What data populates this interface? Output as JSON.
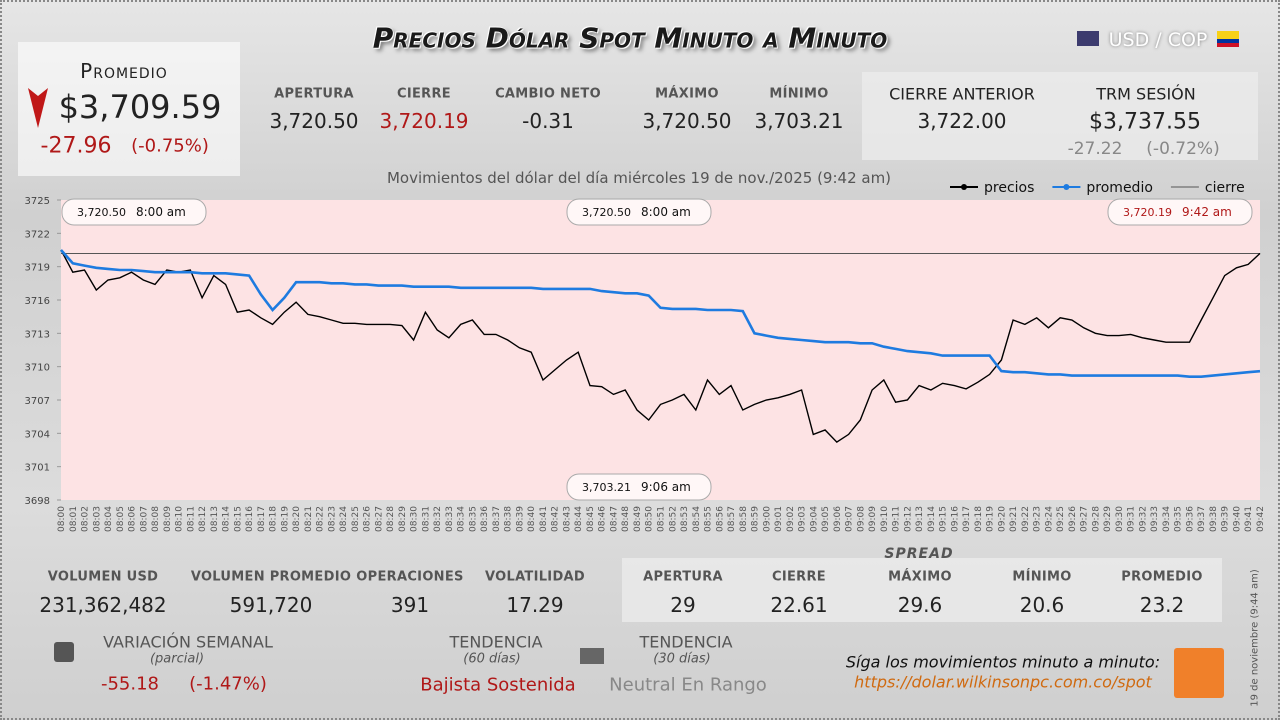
{
  "header": {
    "title": "Precios Dólar Spot Minuto a Minuto",
    "currency_pair": "USD / COP"
  },
  "summary": {
    "promedio_label": "Promedio",
    "promedio": "$3,709.59",
    "change": "-27.96",
    "change_pct": "(-0.75%)",
    "stats": [
      {
        "label": "APERTURA",
        "value": "3,720.50"
      },
      {
        "label": "CIERRE",
        "value": "3,720.19"
      },
      {
        "label": "CAMBIO NETO",
        "value": "-0.31"
      },
      {
        "label": "MÁXIMO",
        "value": "3,720.50"
      },
      {
        "label": "MÍNIMO",
        "value": "3,703.21"
      }
    ],
    "cierre_anterior": {
      "label": "CIERRE ANTERIOR",
      "value": "3,722.00"
    },
    "trm": {
      "label": "TRM SESIÓN",
      "value": "$3,737.55",
      "change": "-27.22",
      "change_pct": "(-0.72%)"
    }
  },
  "chart_data": {
    "type": "line",
    "title": "Movimientos del dólar del día miércoles 19 de nov./2025 (9:42 am)",
    "categories": [
      "08:00",
      "08:01",
      "08:02",
      "08:03",
      "08:04",
      "08:05",
      "08:06",
      "08:07",
      "08:08",
      "08:09",
      "08:10",
      "08:11",
      "08:12",
      "08:13",
      "08:14",
      "08:15",
      "08:16",
      "08:17",
      "08:18",
      "08:19",
      "08:20",
      "08:21",
      "08:22",
      "08:23",
      "08:24",
      "08:25",
      "08:26",
      "08:27",
      "08:28",
      "08:29",
      "08:30",
      "08:31",
      "08:32",
      "08:33",
      "08:34",
      "08:35",
      "08:36",
      "08:37",
      "08:38",
      "08:39",
      "08:40",
      "08:41",
      "08:42",
      "08:43",
      "08:44",
      "08:45",
      "08:46",
      "08:47",
      "08:48",
      "08:49",
      "08:50",
      "08:51",
      "08:52",
      "08:53",
      "08:54",
      "08:55",
      "08:56",
      "08:57",
      "08:58",
      "08:59",
      "09:00",
      "09:01",
      "09:02",
      "09:03",
      "09:04",
      "09:05",
      "09:06",
      "09:07",
      "09:08",
      "09:09",
      "09:10",
      "09:11",
      "09:12",
      "09:13",
      "09:14",
      "09:15",
      "09:16",
      "09:17",
      "09:18",
      "09:19",
      "09:20",
      "09:21",
      "09:22",
      "09:23",
      "09:24",
      "09:25",
      "09:26",
      "09:27",
      "09:28",
      "09:29",
      "09:30",
      "09:31",
      "09:32",
      "09:33",
      "09:34",
      "09:35",
      "09:36",
      "09:37",
      "09:38",
      "09:39",
      "09:40",
      "09:41",
      "09:42"
    ],
    "series": [
      {
        "name": "precios",
        "color": "#000000",
        "values": [
          3720.5,
          3718.5,
          3718.7,
          3716.9,
          3717.8,
          3718,
          3718.5,
          3717.8,
          3717.4,
          3718.7,
          3718.5,
          3718.7,
          3716.2,
          3718.2,
          3717.4,
          3714.9,
          3715.1,
          3714.4,
          3713.8,
          3714.9,
          3715.8,
          3714.7,
          3714.5,
          3714.2,
          3713.9,
          3713.9,
          3713.8,
          3713.8,
          3713.8,
          3713.7,
          3712.4,
          3714.9,
          3713.3,
          3712.6,
          3713.8,
          3714.2,
          3712.9,
          3712.9,
          3712.4,
          3711.7,
          3711.3,
          3708.8,
          3709.7,
          3710.6,
          3711.3,
          3708.3,
          3708.2,
          3707.5,
          3707.9,
          3706.1,
          3705.2,
          3706.6,
          3707,
          3707.5,
          3706.1,
          3708.8,
          3707.5,
          3708.3,
          3706.1,
          3706.6,
          3707,
          3707.2,
          3707.5,
          3707.9,
          3703.9,
          3704.3,
          3703.21,
          3703.9,
          3705.2,
          3707.9,
          3708.8,
          3706.8,
          3707,
          3708.3,
          3707.9,
          3708.5,
          3708.3,
          3708,
          3708.6,
          3709.3,
          3710.6,
          3714.2,
          3713.8,
          3714.4,
          3713.5,
          3714.4,
          3714.2,
          3713.5,
          3713,
          3712.8,
          3712.8,
          3712.9,
          3712.6,
          3712.4,
          3712.2,
          3712.2,
          3712.2,
          3714.2,
          3716.2,
          3718.2,
          3718.9,
          3719.2,
          3720.19
        ]
      },
      {
        "name": "promedio",
        "color": "#1e7be0",
        "values": [
          3720.5,
          3719.3,
          3719.1,
          3718.9,
          3718.8,
          3718.7,
          3718.7,
          3718.6,
          3718.5,
          3718.5,
          3718.5,
          3718.5,
          3718.4,
          3718.4,
          3718.4,
          3718.3,
          3718.2,
          3716.5,
          3715.1,
          3716.2,
          3717.6,
          3717.6,
          3717.6,
          3717.5,
          3717.5,
          3717.4,
          3717.4,
          3717.3,
          3717.3,
          3717.3,
          3717.2,
          3717.2,
          3717.2,
          3717.2,
          3717.1,
          3717.1,
          3717.1,
          3717.1,
          3717.1,
          3717.1,
          3717.1,
          3717,
          3717,
          3717,
          3717,
          3717,
          3716.8,
          3716.7,
          3716.6,
          3716.6,
          3716.4,
          3715.3,
          3715.2,
          3715.2,
          3715.2,
          3715.1,
          3715.1,
          3715.1,
          3715,
          3713,
          3712.8,
          3712.6,
          3712.5,
          3712.4,
          3712.3,
          3712.2,
          3712.2,
          3712.2,
          3712.1,
          3712.1,
          3711.8,
          3711.6,
          3711.4,
          3711.3,
          3711.2,
          3711,
          3711,
          3711,
          3711,
          3711,
          3709.6,
          3709.5,
          3709.5,
          3709.4,
          3709.3,
          3709.3,
          3709.2,
          3709.2,
          3709.2,
          3709.2,
          3709.2,
          3709.2,
          3709.2,
          3709.2,
          3709.2,
          3709.2,
          3709.1,
          3709.1,
          3709.2,
          3709.3,
          3709.4,
          3709.5,
          3709.59
        ]
      }
    ],
    "reference_line": {
      "name": "cierre",
      "value": 3720.19,
      "color": "#555555"
    },
    "ylim": [
      3698,
      3725
    ],
    "yticks": [
      3698,
      3701,
      3704,
      3707,
      3710,
      3713,
      3716,
      3719,
      3722,
      3725
    ],
    "grid": false,
    "legend": "top-right",
    "annotations": [
      {
        "value": "3,720.50",
        "time": "8:00 am"
      },
      {
        "value": "3,720.50",
        "time": "8:00 am"
      },
      {
        "value": "3,720.19",
        "time": "9:42 am"
      },
      {
        "value": "3,703.21",
        "time": "9:06 am"
      }
    ]
  },
  "bottom_stats": [
    {
      "label": "VOLUMEN USD",
      "value": "231,362,482"
    },
    {
      "label": "VOLUMEN PROMEDIO",
      "value": "591,720"
    },
    {
      "label": "OPERACIONES",
      "value": "391"
    },
    {
      "label": "VOLATILIDAD",
      "value": "17.29"
    }
  ],
  "spread": {
    "title": "SPREAD",
    "items": [
      {
        "label": "APERTURA",
        "value": "29"
      },
      {
        "label": "CIERRE",
        "value": "22.61"
      },
      {
        "label": "MÁXIMO",
        "value": "29.6"
      },
      {
        "label": "MÍNIMO",
        "value": "20.6"
      },
      {
        "label": "PROMEDIO",
        "value": "23.2"
      }
    ]
  },
  "weekly": {
    "label": "VARIACIÓN SEMANAL",
    "note": "(parcial)",
    "change": "-55.18",
    "change_pct": "(-1.47%)"
  },
  "trends": [
    {
      "label": "TENDENCIA",
      "note": "(60 días)",
      "value": "Bajista Sostenida"
    },
    {
      "label": "TENDENCIA",
      "note": "(30 días)",
      "value": "Neutral En Rango"
    }
  ],
  "footer": {
    "text": "Síga los movimientos minuto a minuto:",
    "url": "https://dolar.wilkinsonpc.com.co/spot",
    "timestamp": "19 de noviembre (9:44 am)"
  }
}
